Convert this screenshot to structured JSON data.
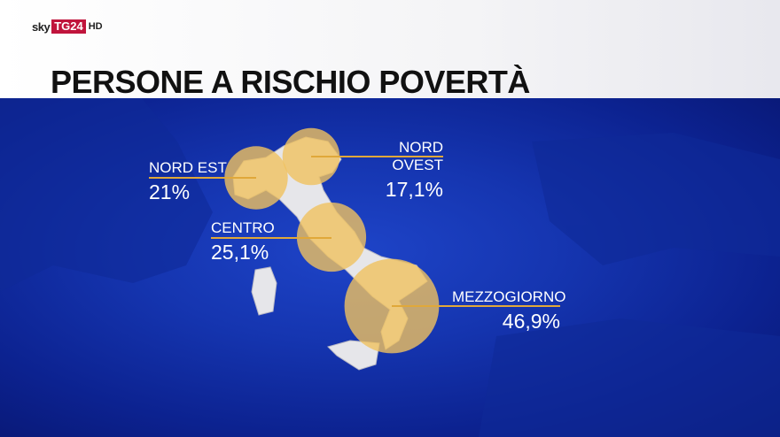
{
  "brand": {
    "sky": "sky",
    "tg": "TG24",
    "hd": "HD"
  },
  "title": "PERSONE A RISCHIO POVERTÀ",
  "colors": {
    "bubble": "#f0c25f",
    "line": "#e0a83a",
    "sea": "#1535b0",
    "land": "#e8e8ec",
    "brand_red": "#c0143c"
  },
  "regions": [
    {
      "name": "NORD EST",
      "value": "21%",
      "percent": 21
    },
    {
      "name": "NORD OVEST",
      "value": "17,1%",
      "percent": 17.1
    },
    {
      "name": "CENTRO",
      "value": "25,1%",
      "percent": 25.1
    },
    {
      "name": "MEZZOGIORNO",
      "value": "46,9%",
      "percent": 46.9
    }
  ]
}
